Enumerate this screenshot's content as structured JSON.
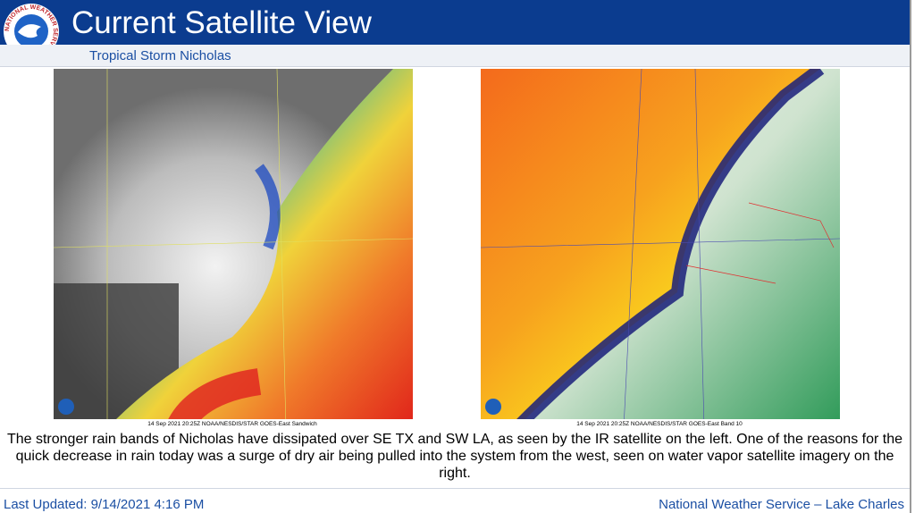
{
  "header": {
    "title": "Current Satellite View",
    "subtitle": "Tropical Storm Nicholas",
    "logo_text": "NATIONAL WEATHER SERVICE"
  },
  "images": [
    {
      "caption": "14 Sep 2021 20:25Z NOAA/NESDIS/STAR GOES-East Sandwich"
    },
    {
      "caption": "14 Sep 2021 20:25Z NOAA/NESDIS/STAR GOES-East Band 10"
    }
  ],
  "body": {
    "text": "The stronger rain bands of Nicholas have dissipated over SE TX and SW LA, as seen by the IR satellite on the left. One of the reasons for the quick decrease in rain today was a surge of dry air being pulled into the system from the west, seen on water vapor satellite imagery on the right."
  },
  "footer": {
    "updated": "Last Updated:  9/14/2021 4:16 PM",
    "office": "National Weather Service – Lake Charles"
  }
}
